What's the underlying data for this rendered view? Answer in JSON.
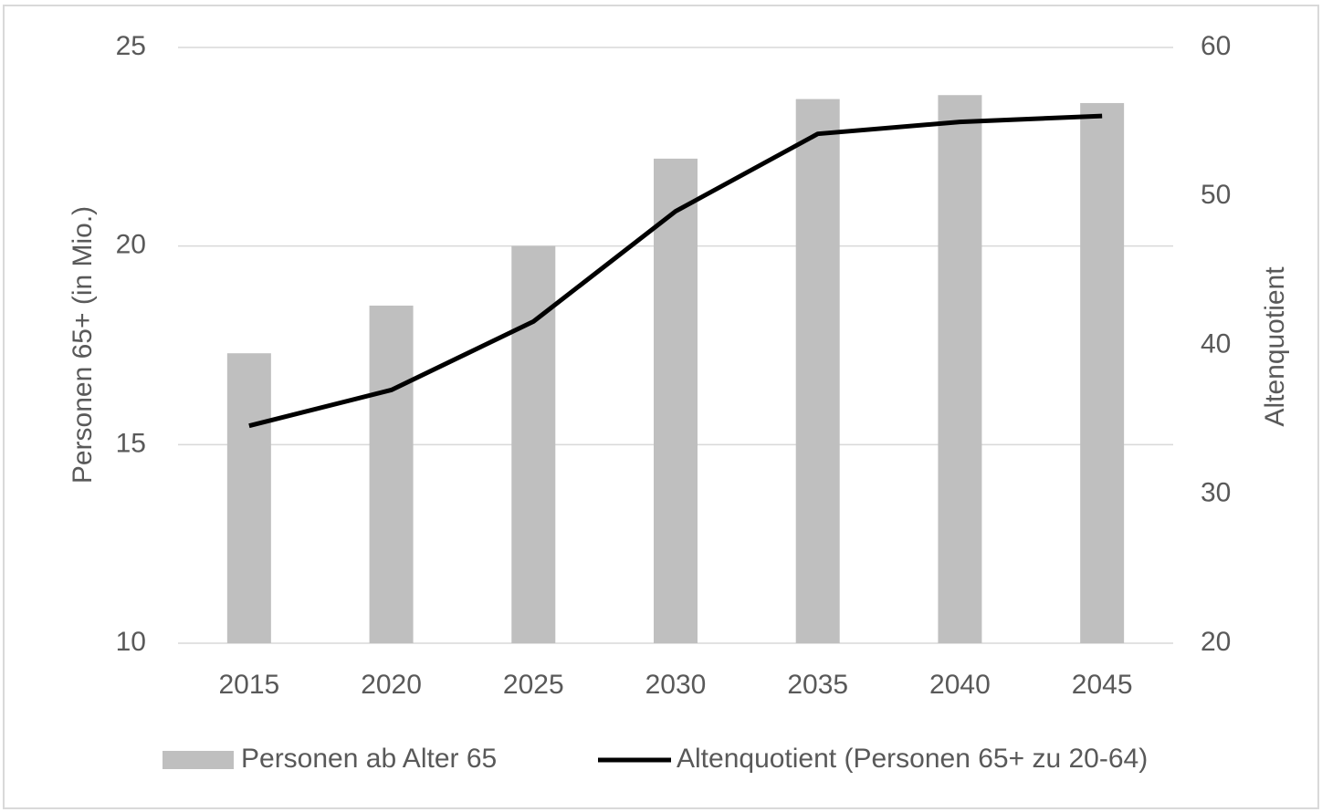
{
  "chart_data": {
    "type": "bar",
    "categories": [
      "2015",
      "2020",
      "2025",
      "2030",
      "2035",
      "2040",
      "2045"
    ],
    "series": [
      {
        "name": "Personen ab Alter 65",
        "type": "bar",
        "color": "#bfbfbf",
        "values": [
          17.3,
          18.5,
          20.0,
          22.2,
          23.7,
          23.8,
          23.6
        ]
      },
      {
        "name": "Altenquotient (Personen 65+ zu 20-64)",
        "type": "line",
        "axis": "y2",
        "color": "#000000",
        "values": [
          34.6,
          37.0,
          41.6,
          49.0,
          54.2,
          55.0,
          55.4
        ]
      }
    ],
    "ylabel": "Personen 65+ (in Mio.)",
    "y2label": "Altenquotient",
    "ylim": [
      10,
      25
    ],
    "yticks": [
      10,
      15,
      20,
      25
    ],
    "y2lim": [
      20,
      60
    ],
    "y2ticks": [
      20,
      30,
      40,
      50,
      60
    ],
    "grid": true,
    "legend": "bottom"
  }
}
